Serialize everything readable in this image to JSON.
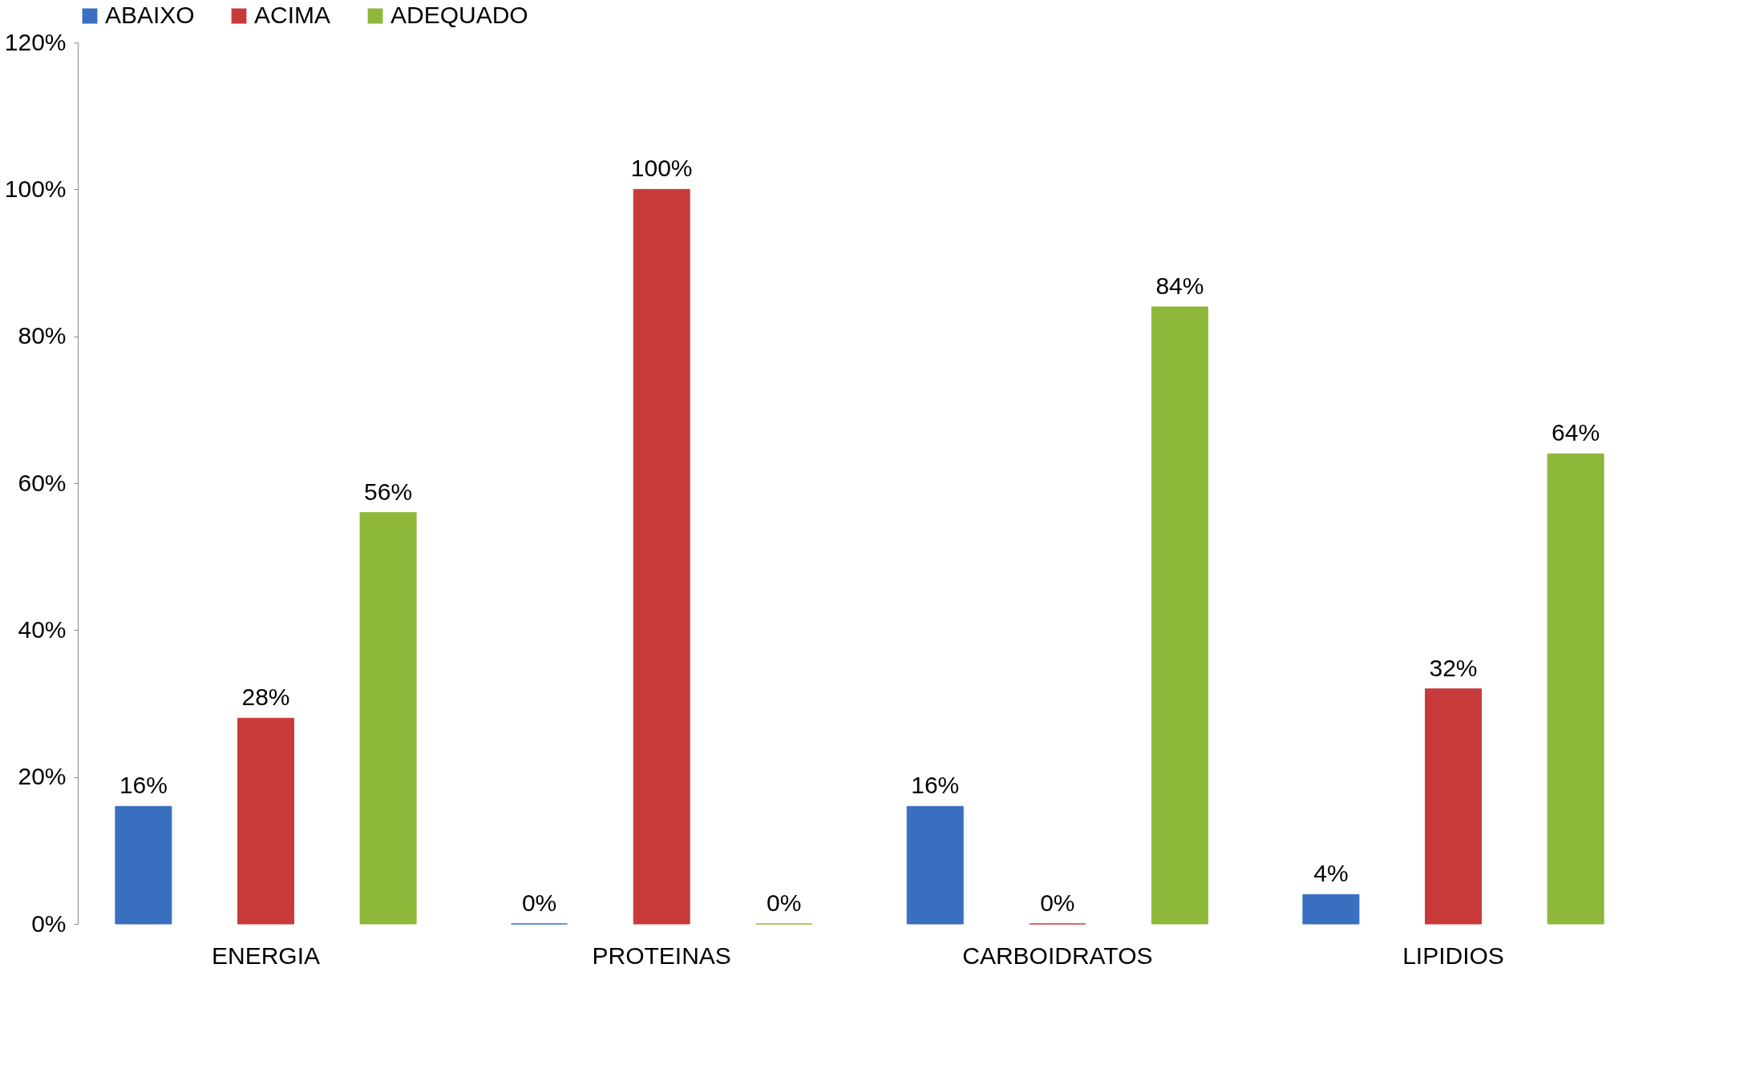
{
  "chart_data": {
    "type": "bar",
    "categories": [
      "ENERGIA",
      "PROTEINAS",
      "CARBOIDRATOS",
      "LIPIDIOS"
    ],
    "series": [
      {
        "name": "ABAIXO",
        "color": "#3a6fc0",
        "values": [
          16,
          0,
          16,
          4
        ],
        "value_labels": [
          "16%",
          "0%",
          "16%",
          "4%"
        ]
      },
      {
        "name": "ACIMA",
        "color": "#c83a3a",
        "values": [
          28,
          100,
          0,
          32
        ],
        "value_labels": [
          "28%",
          "100%",
          "0%",
          "32%"
        ]
      },
      {
        "name": "ADEQUADO",
        "color": "#8db83a",
        "values": [
          56,
          0,
          84,
          64
        ],
        "value_labels": [
          "56%",
          "0%",
          "84%",
          "64%"
        ]
      }
    ],
    "ylim": [
      0,
      120
    ],
    "yticks": [
      {
        "value": 0,
        "label": "0%"
      },
      {
        "value": 20,
        "label": "20%"
      },
      {
        "value": 40,
        "label": "40%"
      },
      {
        "value": 60,
        "label": "60%"
      },
      {
        "value": 80,
        "label": "80%"
      },
      {
        "value": 100,
        "label": "100%"
      },
      {
        "value": 120,
        "label": "120%"
      }
    ],
    "grid": false,
    "legend": "top"
  }
}
